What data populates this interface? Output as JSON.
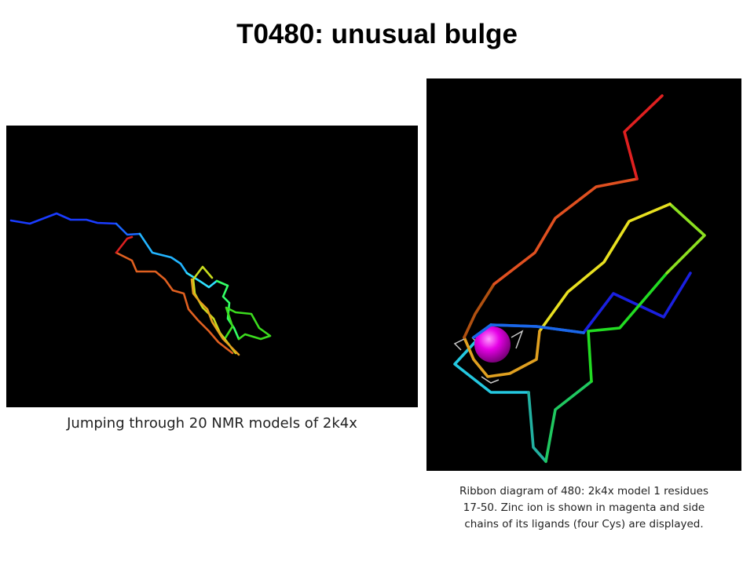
{
  "slide": {
    "title": "T0480: unusual bulge"
  },
  "left_figure": {
    "caption": "Jumping through 20 NMR models of 2k4x",
    "background": "#000000",
    "trace_colors": [
      "#1a3cff",
      "#1a66ff",
      "#22b4ff",
      "#2ee0ff",
      "#33ff66",
      "#3cdc1e",
      "#c8dc1e",
      "#e6a01e",
      "#e06020",
      "#dc2020"
    ]
  },
  "right_figure": {
    "caption_lines": [
      "Ribbon diagram of 480: 2k4x model 1 residues",
      "17-50. Zinc ion is shown in magenta and side",
      "chains of its ligands (four Cys) are displayed."
    ],
    "background": "#000000",
    "zinc_color": "#e600e6",
    "trace_colors": [
      "#1a20e0",
      "#1a66e8",
      "#24c8e0",
      "#22b0a0",
      "#20c860",
      "#22dc22",
      "#8ce020",
      "#e8e020",
      "#e0a020",
      "#b05010",
      "#e05020",
      "#e02020"
    ]
  }
}
